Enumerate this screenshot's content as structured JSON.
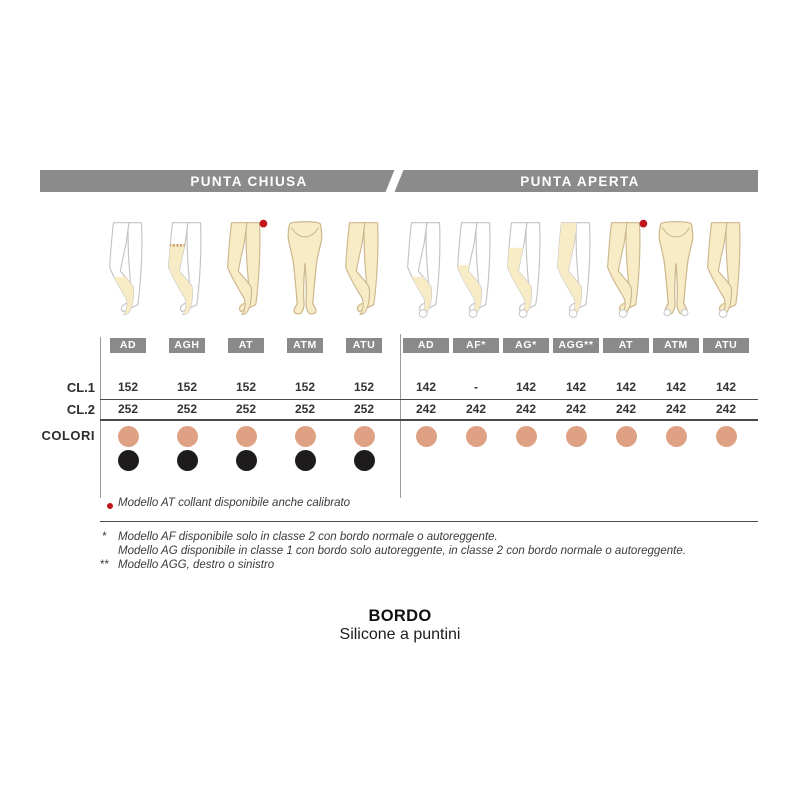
{
  "colors": {
    "bar_gray": "#8b8b8b",
    "badge_gray": "#8a8a8a",
    "tan_dot": "#dfa183",
    "black_dot": "#1d1b1b",
    "leg_fill": "#f8ecc7",
    "leg_outline": "#cdb88f",
    "bare_leg_outline": "#c4c4c4",
    "red_dot": "#c0161d",
    "line_dark": "#4a4a4a"
  },
  "header": {
    "left": "PUNTA CHIUSA",
    "right": "PUNTA APERTA"
  },
  "row_labels": {
    "cl1": "CL.1",
    "cl2": "CL.2",
    "colori": "COLORI"
  },
  "chart_data": {
    "type": "table",
    "row_headers": [
      "CL.1",
      "CL.2",
      "COLORI"
    ],
    "sections": {
      "left": {
        "title": "PUNTA CHIUSA",
        "toe": "closed",
        "columns": [
          {
            "label": "AD",
            "leg": "knee",
            "cl1": "152",
            "cl2": "252",
            "colori": [
              "tan",
              "black"
            ]
          },
          {
            "label": "AGH",
            "leg": "thigh-band",
            "cl1": "152",
            "cl2": "252",
            "colori": [
              "tan",
              "black"
            ]
          },
          {
            "label": "AT",
            "leg": "tights",
            "dot": true,
            "cl1": "152",
            "cl2": "252",
            "colori": [
              "tan",
              "black"
            ]
          },
          {
            "label": "ATM",
            "leg": "front",
            "cl1": "152",
            "cl2": "252",
            "colori": [
              "tan",
              "black"
            ]
          },
          {
            "label": "ATU",
            "leg": "crossed",
            "cl1": "152",
            "cl2": "252",
            "colori": [
              "tan",
              "black"
            ]
          }
        ]
      },
      "right": {
        "title": "PUNTA APERTA",
        "toe": "open",
        "columns": [
          {
            "label": "AD",
            "leg": "knee",
            "cl1": "142",
            "cl2": "242",
            "colori": [
              "tan"
            ]
          },
          {
            "label": "AF*",
            "leg": "knee-high",
            "cl1": "-",
            "cl2": "242",
            "colori": [
              "tan"
            ]
          },
          {
            "label": "AG*",
            "leg": "thigh",
            "cl1": "142",
            "cl2": "242",
            "colori": [
              "tan"
            ]
          },
          {
            "label": "AGG**",
            "leg": "monocollant",
            "cl1": "142",
            "cl2": "242",
            "colori": [
              "tan"
            ]
          },
          {
            "label": "AT",
            "leg": "tights",
            "dot": true,
            "cl1": "142",
            "cl2": "242",
            "colori": [
              "tan"
            ]
          },
          {
            "label": "ATM",
            "leg": "front",
            "cl1": "142",
            "cl2": "242",
            "colori": [
              "tan"
            ]
          },
          {
            "label": "ATU",
            "leg": "crossed",
            "cl1": "142",
            "cl2": "242",
            "colori": [
              "tan"
            ]
          }
        ]
      }
    }
  },
  "footnotes": {
    "at_note": {
      "marker": "•",
      "text": "Modello AT collant disponibile anche calibrato"
    },
    "items": [
      {
        "marker": "*",
        "text": "Modello AF disponibile solo in classe 2 con bordo normale o autoreggente."
      },
      {
        "marker": "",
        "text": "Modello AG disponibile in classe 1 con bordo solo autoreggente, in classe 2 con bordo normale o autoreggente."
      },
      {
        "marker": "**",
        "text": "Modello AGG, destro o sinistro"
      }
    ]
  },
  "bordo": {
    "title": "BORDO",
    "subtitle": "Silicone a puntini"
  }
}
